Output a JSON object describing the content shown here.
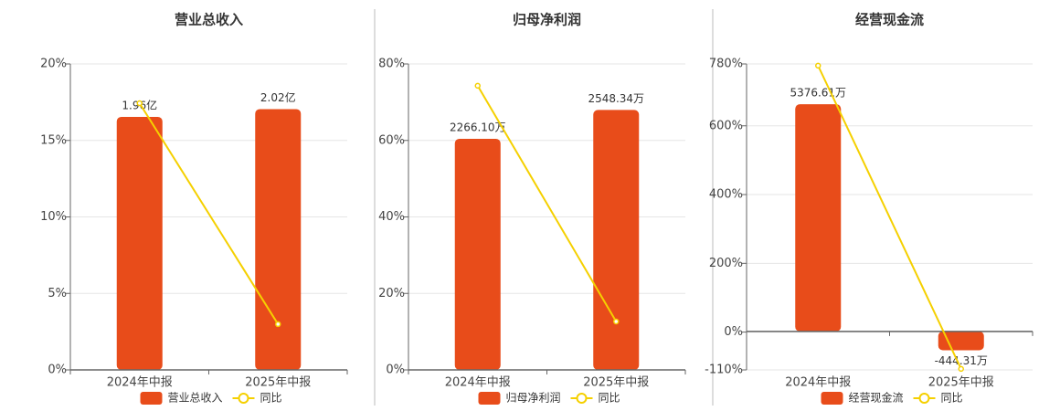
{
  "chart_data": [
    {
      "type": "bar_line",
      "title": "营业总收入",
      "categories": [
        "2024年中报",
        "2025年中报"
      ],
      "series": [
        {
          "name": "营业总收入",
          "color": "#e84c1a",
          "values": [
            1.96,
            2.02
          ],
          "value_labels": [
            "1.96亿",
            "2.02亿"
          ],
          "axis": "y2"
        },
        {
          "name": "同比",
          "color": "#f5d000",
          "values": [
            17.43,
            2.99
          ]
        }
      ],
      "ylim": [
        0,
        20
      ],
      "yticks": [
        {
          "value": 0,
          "label": "0%"
        },
        {
          "value": 5,
          "label": "5%"
        },
        {
          "value": 10,
          "label": "10%"
        },
        {
          "value": 15,
          "label": "15%"
        },
        {
          "value": 20,
          "label": "20%"
        }
      ],
      "y2lim": [
        0,
        2.37
      ],
      "grid": true
    },
    {
      "type": "bar_line",
      "title": "归母净利润",
      "categories": [
        "2024年中报",
        "2025年中报"
      ],
      "series": [
        {
          "name": "归母净利润",
          "color": "#e84c1a",
          "values": [
            2266.1,
            2548.34
          ],
          "value_labels": [
            "2266.10万",
            "2548.34万"
          ],
          "axis": "y2"
        },
        {
          "name": "同比",
          "color": "#f5d000",
          "values": [
            74.3,
            12.66
          ]
        }
      ],
      "ylim": [
        0,
        80
      ],
      "yticks": [
        {
          "value": 0,
          "label": "0%"
        },
        {
          "value": 20,
          "label": "20%"
        },
        {
          "value": 40,
          "label": "40%"
        },
        {
          "value": 60,
          "label": "60%"
        },
        {
          "value": 80,
          "label": "80%"
        }
      ],
      "y2lim": [
        0,
        3000
      ],
      "grid": true
    },
    {
      "type": "bar_line",
      "title": "经营现金流",
      "categories": [
        "2024年中报",
        "2025年中报"
      ],
      "series": [
        {
          "name": "经营现金流",
          "color": "#e84c1a",
          "values": [
            5376.61,
            -444.31
          ],
          "value_labels": [
            "5376.61万",
            "-444.31万"
          ],
          "axis": "y2"
        },
        {
          "name": "同比",
          "color": "#f5d000",
          "values": [
            775,
            -107
          ]
        }
      ],
      "ylim": [
        -110,
        780
      ],
      "yticks": [
        {
          "value": -110,
          "label": "-110%"
        },
        {
          "value": 0,
          "label": "0%"
        },
        {
          "value": 200,
          "label": "200%"
        },
        {
          "value": 400,
          "label": "400%"
        },
        {
          "value": 600,
          "label": "600%"
        },
        {
          "value": 780,
          "label": "780%"
        }
      ],
      "y2lim": [
        -910,
        6330
      ],
      "grid": true
    }
  ]
}
